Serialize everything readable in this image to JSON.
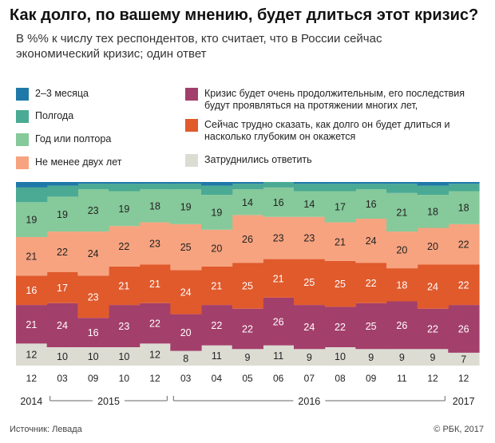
{
  "title": "Как долго, по вашему мнению, будет длиться этот кризис?",
  "subtitle": "В %% к числу тех респондентов, кто считает, что в России сейчас экономический кризис; один ответ",
  "source": "Источник: Левада",
  "copyright": "© РБК, 2017",
  "colors": {
    "m23": "#1f79a8",
    "half": "#4aaa94",
    "year": "#86c99a",
    "two": "#f7a37f",
    "sbig": "#e05a2c",
    "long": "#a33f6b",
    "dk": "#dcdcd3"
  },
  "legend": [
    {
      "key": "m23",
      "label": "2–3 месяца"
    },
    {
      "key": "half",
      "label": "Полгода"
    },
    {
      "key": "year",
      "label": "Год или полтора"
    },
    {
      "key": "two",
      "label": "Не менее двух лет"
    },
    {
      "key": "long",
      "label": "Кризис будет очень продолжительным, его последствия будут проявляться на протяжении многих лет,"
    },
    {
      "key": "sbig",
      "label": "Сейчас трудно сказать, как долго он будет длиться и насколько глубоким он окажется"
    },
    {
      "key": "dk",
      "label": "Затруднились ответить"
    }
  ],
  "chart_data": {
    "type": "area",
    "stacked": true,
    "categories": [
      "12",
      "03",
      "09",
      "10",
      "12",
      "03",
      "04",
      "05",
      "06",
      "07",
      "08",
      "09",
      "11",
      "12",
      "12"
    ],
    "years": [
      {
        "label": "2014",
        "from": 0,
        "to": 0
      },
      {
        "label": "2015",
        "from": 1,
        "to": 4
      },
      {
        "label": "2016",
        "from": 5,
        "to": 13
      },
      {
        "label": "2017",
        "from": 14,
        "to": 14
      }
    ],
    "series": [
      {
        "key": "dk",
        "values": [
          12,
          10,
          10,
          10,
          12,
          8,
          11,
          9,
          11,
          9,
          10,
          9,
          9,
          9,
          7
        ]
      },
      {
        "key": "long",
        "values": [
          21,
          24,
          16,
          23,
          22,
          20,
          22,
          22,
          26,
          24,
          22,
          25,
          26,
          22,
          26
        ]
      },
      {
        "key": "sbig",
        "values": [
          16,
          17,
          23,
          21,
          21,
          24,
          21,
          25,
          21,
          25,
          25,
          22,
          18,
          24,
          22
        ]
      },
      {
        "key": "two",
        "values": [
          21,
          22,
          24,
          22,
          23,
          25,
          20,
          26,
          23,
          23,
          21,
          24,
          20,
          20,
          22
        ]
      },
      {
        "key": "year",
        "values": [
          19,
          19,
          23,
          19,
          18,
          19,
          19,
          14,
          16,
          14,
          17,
          16,
          21,
          18,
          18
        ]
      },
      {
        "key": "half",
        "values": [
          8,
          6,
          3,
          4,
          3,
          3,
          5,
          3,
          3,
          4,
          4,
          3,
          5,
          5,
          4
        ]
      },
      {
        "key": "m23",
        "values": [
          3,
          2,
          1,
          1,
          1,
          1,
          2,
          1,
          0,
          1,
          1,
          1,
          1,
          2,
          1
        ]
      }
    ],
    "ylim": [
      0,
      100
    ]
  }
}
